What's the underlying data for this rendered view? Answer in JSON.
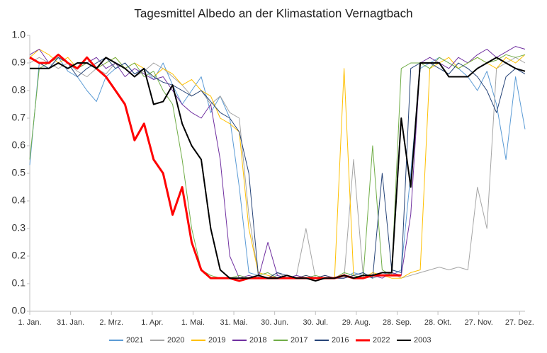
{
  "chart_data": {
    "type": "line",
    "title": "Tagesmittel Albedo an der Klimastation Vernagtbach",
    "x": [
      1,
      8,
      15,
      22,
      29,
      36,
      43,
      50,
      57,
      64,
      71,
      78,
      85,
      92,
      99,
      106,
      113,
      120,
      127,
      134,
      141,
      148,
      155,
      162,
      169,
      176,
      183,
      190,
      197,
      204,
      211,
      218,
      225,
      232,
      239,
      246,
      253,
      260,
      267,
      274,
      281,
      288,
      295,
      302,
      309,
      316,
      323,
      330,
      337,
      344,
      351,
      358,
      365
    ],
    "xlim": [
      1,
      365
    ],
    "xticks": [
      {
        "value": 1,
        "label": "1. Jan."
      },
      {
        "value": 31,
        "label": "31. Jan."
      },
      {
        "value": 61,
        "label": "2. Mrz."
      },
      {
        "value": 91,
        "label": "1. Apr."
      },
      {
        "value": 121,
        "label": "1. Mai."
      },
      {
        "value": 151,
        "label": "31. Mai."
      },
      {
        "value": 181,
        "label": "30. Jun."
      },
      {
        "value": 211,
        "label": "30. Jul."
      },
      {
        "value": 241,
        "label": "29. Aug."
      },
      {
        "value": 271,
        "label": "28. Sep."
      },
      {
        "value": 301,
        "label": "28. Okt."
      },
      {
        "value": 331,
        "label": "27. Nov."
      },
      {
        "value": 361,
        "label": "27. Dez."
      }
    ],
    "ylim": [
      0,
      1
    ],
    "yticks": [
      {
        "value": 0,
        "label": "0.0"
      },
      0.1,
      0.2,
      0.3,
      0.4,
      0.5,
      0.6,
      0.7,
      0.8,
      0.9,
      {
        "value": 1,
        "label": "1.0"
      }
    ],
    "grid": false,
    "legend": "bottom",
    "series": [
      {
        "name": "2021",
        "color": "#5b9bd5",
        "linewidth": 1,
        "values": [
          0.53,
          0.9,
          0.88,
          0.92,
          0.87,
          0.85,
          0.8,
          0.76,
          0.85,
          0.88,
          0.9,
          0.86,
          0.88,
          0.84,
          0.9,
          0.82,
          0.75,
          0.8,
          0.85,
          0.72,
          0.78,
          0.7,
          0.45,
          0.14,
          0.13,
          0.12,
          0.13,
          0.12,
          0.13,
          0.12,
          0.12,
          0.13,
          0.12,
          0.12,
          0.14,
          0.13,
          0.12,
          0.14,
          0.13,
          0.15,
          0.5,
          0.88,
          0.9,
          0.92,
          0.9,
          0.88,
          0.85,
          0.8,
          0.87,
          0.75,
          0.55,
          0.85,
          0.66
        ]
      },
      {
        "name": "2020",
        "color": "#a5a5a5",
        "linewidth": 1,
        "values": [
          0.9,
          0.92,
          0.9,
          0.88,
          0.9,
          0.87,
          0.85,
          0.88,
          0.86,
          0.9,
          0.88,
          0.85,
          0.87,
          0.9,
          0.88,
          0.85,
          0.82,
          0.78,
          0.8,
          0.75,
          0.78,
          0.72,
          0.7,
          0.35,
          0.13,
          0.12,
          0.14,
          0.12,
          0.13,
          0.3,
          0.12,
          0.13,
          0.12,
          0.12,
          0.55,
          0.13,
          0.12,
          0.13,
          0.14,
          0.12,
          0.13,
          0.14,
          0.15,
          0.16,
          0.15,
          0.16,
          0.15,
          0.45,
          0.3,
          0.88,
          0.9,
          0.92,
          0.9
        ]
      },
      {
        "name": "2019",
        "color": "#ffc000",
        "linewidth": 1,
        "values": [
          0.92,
          0.95,
          0.93,
          0.9,
          0.92,
          0.88,
          0.9,
          0.88,
          0.9,
          0.92,
          0.88,
          0.9,
          0.88,
          0.85,
          0.88,
          0.86,
          0.82,
          0.84,
          0.8,
          0.78,
          0.7,
          0.68,
          0.65,
          0.3,
          0.14,
          0.13,
          0.12,
          0.13,
          0.12,
          0.13,
          0.12,
          0.13,
          0.12,
          0.88,
          0.13,
          0.12,
          0.14,
          0.13,
          0.12,
          0.12,
          0.14,
          0.15,
          0.88,
          0.9,
          0.92,
          0.88,
          0.9,
          0.92,
          0.9,
          0.88,
          0.92,
          0.9,
          0.93
        ]
      },
      {
        "name": "2018",
        "color": "#7030a0",
        "linewidth": 1,
        "values": [
          0.93,
          0.95,
          0.9,
          0.92,
          0.9,
          0.88,
          0.9,
          0.92,
          0.88,
          0.9,
          0.85,
          0.88,
          0.86,
          0.84,
          0.85,
          0.8,
          0.75,
          0.72,
          0.7,
          0.75,
          0.55,
          0.2,
          0.12,
          0.13,
          0.12,
          0.25,
          0.13,
          0.12,
          0.13,
          0.12,
          0.12,
          0.13,
          0.12,
          0.12,
          0.13,
          0.12,
          0.13,
          0.12,
          0.14,
          0.13,
          0.35,
          0.9,
          0.92,
          0.9,
          0.88,
          0.92,
          0.9,
          0.93,
          0.95,
          0.92,
          0.94,
          0.96,
          0.95
        ]
      },
      {
        "name": "2017",
        "color": "#70ad47",
        "linewidth": 1,
        "values": [
          0.55,
          0.88,
          0.9,
          0.92,
          0.9,
          0.88,
          0.9,
          0.88,
          0.9,
          0.92,
          0.88,
          0.9,
          0.85,
          0.87,
          0.8,
          0.75,
          0.55,
          0.3,
          0.15,
          0.13,
          0.12,
          0.12,
          0.13,
          0.12,
          0.13,
          0.14,
          0.12,
          0.13,
          0.12,
          0.12,
          0.13,
          0.12,
          0.12,
          0.14,
          0.13,
          0.12,
          0.6,
          0.15,
          0.13,
          0.88,
          0.9,
          0.9,
          0.88,
          0.92,
          0.9,
          0.88,
          0.9,
          0.92,
          0.9,
          0.91,
          0.93,
          0.92,
          0.93
        ]
      },
      {
        "name": "2016",
        "color": "#264478",
        "linewidth": 1,
        "values": [
          0.92,
          0.9,
          0.88,
          0.92,
          0.9,
          0.85,
          0.88,
          0.9,
          0.92,
          0.88,
          0.9,
          0.86,
          0.88,
          0.85,
          0.83,
          0.82,
          0.8,
          0.78,
          0.8,
          0.76,
          0.72,
          0.7,
          0.65,
          0.5,
          0.13,
          0.12,
          0.14,
          0.13,
          0.12,
          0.13,
          0.12,
          0.13,
          0.12,
          0.12,
          0.13,
          0.14,
          0.12,
          0.5,
          0.15,
          0.14,
          0.88,
          0.9,
          0.9,
          0.88,
          0.86,
          0.9,
          0.88,
          0.85,
          0.8,
          0.72,
          0.85,
          0.88,
          0.86
        ]
      },
      {
        "name": "2022",
        "color": "#ff0000",
        "linewidth": 3,
        "values": [
          0.92,
          0.9,
          0.9,
          0.93,
          0.9,
          0.88,
          0.92,
          0.88,
          0.85,
          0.8,
          0.75,
          0.62,
          0.68,
          0.55,
          0.5,
          0.35,
          0.45,
          0.25,
          0.15,
          0.12,
          0.12,
          0.12,
          0.11,
          0.12,
          0.12,
          0.12,
          0.12,
          0.12,
          0.12,
          0.12,
          0.12,
          0.12,
          0.12,
          0.13,
          0.12,
          0.12,
          0.13,
          0.13,
          0.13,
          0.13,
          null,
          null,
          null,
          null,
          null,
          null,
          null,
          null,
          null,
          null,
          null,
          null,
          null
        ]
      },
      {
        "name": "2003",
        "color": "#000000",
        "linewidth": 2,
        "values": [
          0.88,
          0.88,
          0.88,
          0.9,
          0.88,
          0.9,
          0.9,
          0.88,
          0.92,
          0.9,
          0.88,
          0.85,
          0.88,
          0.75,
          0.76,
          0.82,
          0.68,
          0.6,
          0.55,
          0.3,
          0.15,
          0.12,
          0.12,
          0.12,
          0.13,
          0.12,
          0.12,
          0.13,
          0.12,
          0.12,
          0.11,
          0.12,
          0.12,
          0.13,
          0.12,
          0.13,
          0.13,
          0.14,
          0.14,
          0.7,
          0.45,
          0.9,
          0.9,
          0.9,
          0.85,
          0.85,
          0.85,
          0.88,
          0.9,
          0.92,
          0.9,
          0.88,
          0.87
        ]
      }
    ]
  }
}
